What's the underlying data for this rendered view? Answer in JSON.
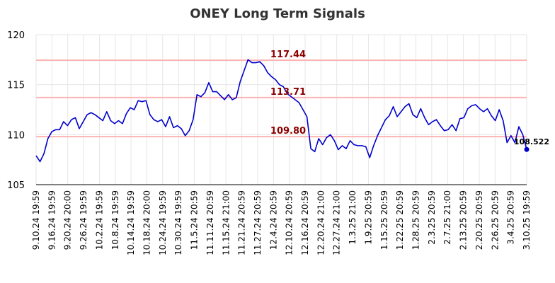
{
  "chart_data": {
    "type": "line",
    "title": "ONEY Long Term Signals",
    "ylim": [
      105,
      120
    ],
    "y_ticks": [
      105,
      110,
      115,
      120
    ],
    "grid": true,
    "x_tick_labels": [
      "9.10.24 19:59",
      "9.16.24 19:59",
      "9.20.24 20:00",
      "9.26.24 19:59",
      "10.2.24 19:59",
      "10.8.24 19:59",
      "10.14.24 19:59",
      "10.18.24 20:00",
      "10.24.24 19:59",
      "10.30.24 19:59",
      "11.5.24 20:59",
      "11.11.24 20:59",
      "11.15.24 21:00",
      "11.21.24 20:59",
      "11.27.24 20:59",
      "12.4.24 20:59",
      "12.10.24 20:59",
      "12.16.24 20:59",
      "12.20.24 21:00",
      "12.27.24 21:00",
      "1.3.25 21:00",
      "1.9.25 20:59",
      "1.15.25 20:59",
      "1.22.25 20:59",
      "1.28.25 20:59",
      "2.3.25 20:59",
      "2.7.25 21:00",
      "2.13.25 20:59",
      "2.20.25 20:59",
      "2.26.25 20:59",
      "3.4.25 20:59",
      "3.10.25 19:59"
    ],
    "levels": [
      {
        "value": 117.44,
        "label": "117.44"
      },
      {
        "value": 113.71,
        "label": "113.71"
      },
      {
        "value": 109.8,
        "label": "109.80"
      }
    ],
    "last_value_label": "108.522",
    "line_color": "#0000cc",
    "level_color": "#ffb3b3",
    "level_label_color": "#8b0000",
    "series": [
      {
        "values": [
          107.9,
          107.3,
          108.1,
          109.6,
          110.3,
          110.5,
          110.5,
          111.3,
          110.9,
          111.5,
          111.7,
          110.6,
          111.3,
          112.0,
          112.2,
          112.0,
          111.7,
          111.4,
          112.3,
          111.4,
          111.1,
          111.4,
          111.1,
          112.1,
          112.7,
          112.5,
          113.4,
          113.3,
          113.4,
          112.0,
          111.5,
          111.3,
          111.5,
          110.8,
          111.8,
          110.7,
          110.9,
          110.6,
          109.9,
          110.4,
          111.5,
          114.0,
          113.8,
          114.2,
          115.2,
          114.3,
          114.3,
          113.9,
          113.5,
          114.0,
          113.5,
          113.7,
          115.3,
          116.4,
          117.5,
          117.2,
          117.2,
          117.3,
          116.9,
          116.2,
          115.8,
          115.5,
          115.0,
          114.8,
          114.1,
          113.8,
          113.5,
          113.2,
          112.5,
          111.8,
          108.6,
          108.3,
          109.6,
          109.0,
          109.7,
          110.0,
          109.4,
          108.5,
          108.9,
          108.6,
          109.4,
          109.0,
          108.9,
          108.9,
          108.8,
          107.7,
          108.9,
          109.9,
          110.7,
          111.5,
          111.9,
          112.8,
          111.8,
          112.3,
          112.8,
          113.1,
          112.0,
          111.7,
          112.6,
          111.7,
          111.0,
          111.3,
          111.5,
          110.9,
          110.4,
          110.5,
          111.0,
          110.4,
          111.6,
          111.7,
          112.6,
          112.9,
          113.0,
          112.6,
          112.3,
          112.6,
          111.9,
          111.4,
          112.5,
          111.4,
          109.2,
          109.9,
          109.2,
          110.8,
          110.0,
          108.522
        ]
      }
    ]
  }
}
